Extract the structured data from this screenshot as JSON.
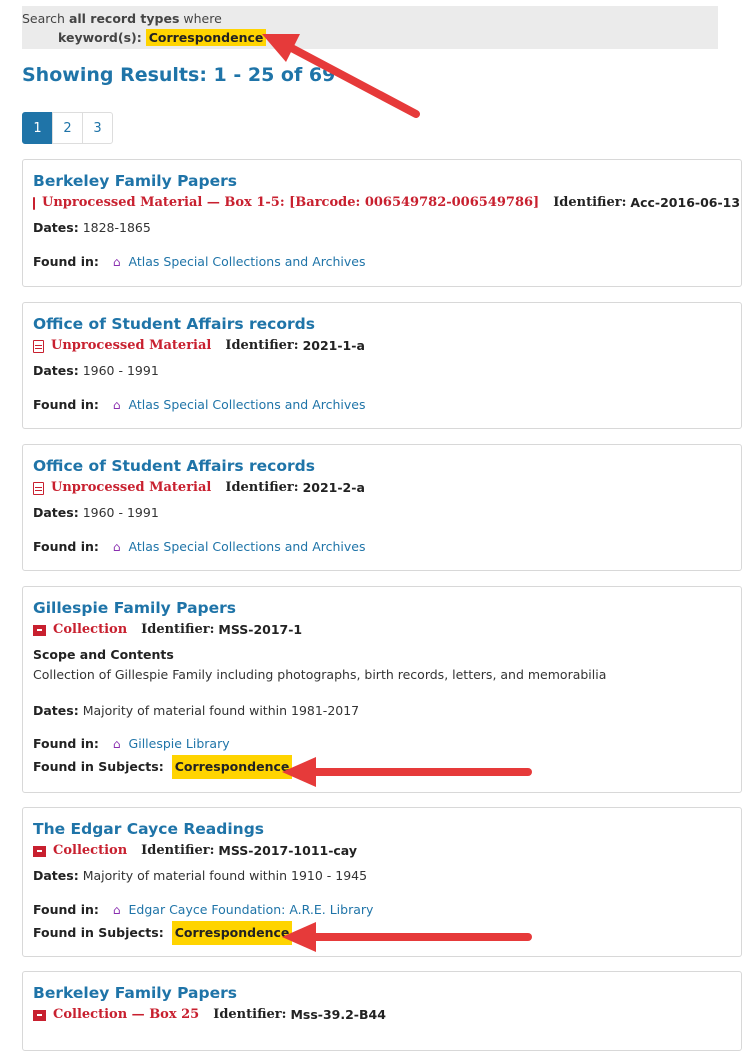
{
  "search": {
    "prefix": "Search",
    "record_types": "all record types",
    "where": "where",
    "field_label": "keyword(s):",
    "keyword": "Correspondence"
  },
  "results_title": "Showing Results: 1 - 25 of 69",
  "pagination": [
    "1",
    "2",
    "3"
  ],
  "labels": {
    "identifier": "Identifier:",
    "dates": "Dates:",
    "found_in": "Found in:",
    "found_in_subjects": "Found in Subjects:",
    "scope": "Scope and Contents"
  },
  "results": [
    {
      "title": "Berkeley Family Papers",
      "type": "Unprocessed Material — Box 1-5: [Barcode: 006549782-006549786]",
      "identifier": "Acc-2016-06-13",
      "dates": "1828-1865",
      "repository": "Atlas Special Collections and Archives"
    },
    {
      "title": "Office of Student Affairs records",
      "type": "Unprocessed Material",
      "identifier": "2021-1-a",
      "dates": "1960 - 1991",
      "repository": "Atlas Special Collections and Archives"
    },
    {
      "title": "Office of Student Affairs records",
      "type": "Unprocessed Material",
      "identifier": "2021-2-a",
      "dates": "1960 - 1991",
      "repository": "Atlas Special Collections and Archives"
    },
    {
      "title": "Gillespie Family Papers",
      "type": "Collection",
      "identifier": "MSS-2017-1",
      "scope": "Collection of Gillespie Family including photographs, birth records, letters, and memorabilia",
      "dates": "Majority of material found within 1981-2017",
      "repository": "Gillespie Library",
      "subject": "Correspondence"
    },
    {
      "title": "The Edgar Cayce Readings",
      "type": "Collection",
      "identifier": "MSS-2017-1011-cay",
      "dates": "Majority of material found within 1910 - 1945",
      "repository": "Edgar Cayce Foundation: A.R.E. Library",
      "subject": "Correspondence"
    },
    {
      "title": "Berkeley Family Papers",
      "type": "Collection — Box 25",
      "identifier": "Mss-39.2-B44"
    }
  ],
  "colors": {
    "link": "#1f74a8",
    "type": "#c8202f",
    "highlight": "#ffd400",
    "arrow": "#e63a3a",
    "home": "#8a2fb0"
  },
  "icons": {
    "unprocessed": "document-icon",
    "collection": "archive-box-icon",
    "repository": "home-icon"
  }
}
